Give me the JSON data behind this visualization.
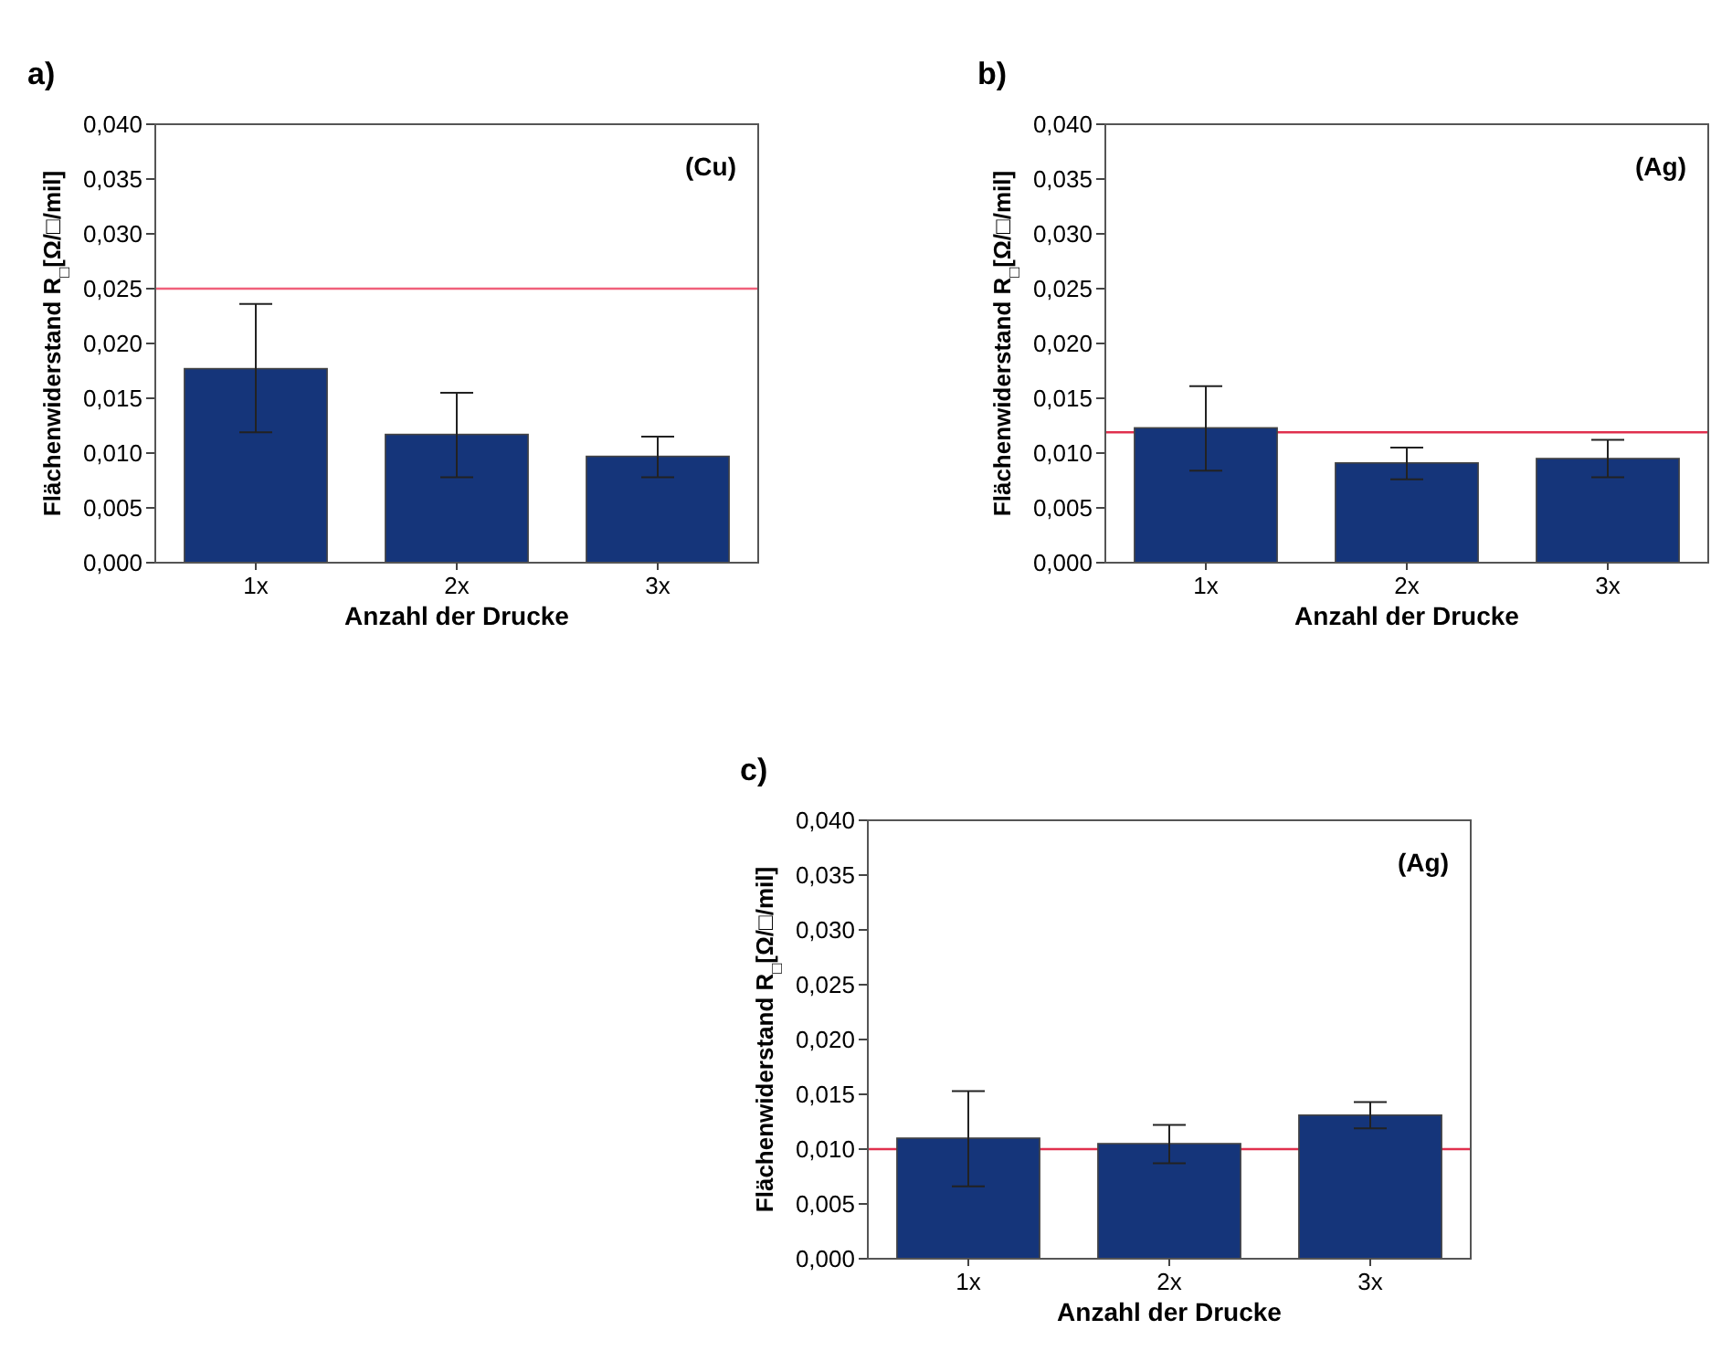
{
  "chart_data": [
    {
      "type": "bar",
      "title": "a)",
      "xlabel": "Anzahl der Drucke",
      "ylabel": "Flächenwiderstand R$_{□}$[Ω/□/mil]",
      "annotations": [
        "(Cu)"
      ],
      "categories": [
        "1x",
        "2x",
        "3x"
      ],
      "values": [
        0.0177,
        0.0117,
        0.0097
      ],
      "errors": [
        [
          0.0119,
          0.0236
        ],
        [
          0.0078,
          0.0155
        ],
        [
          0.0078,
          0.0115
        ]
      ],
      "color": "#15357a",
      "ylim": [
        0,
        0.04
      ],
      "yticks": [
        {
          "value": 0,
          "label": "0,000"
        },
        {
          "value": 0.005,
          "label": "0,005"
        },
        {
          "value": 0.01,
          "label": "0,010"
        },
        {
          "value": 0.015,
          "label": "0,015"
        },
        {
          "value": 0.02,
          "label": "0,020"
        },
        {
          "value": 0.025,
          "label": "0,025"
        },
        {
          "value": 0.03,
          "label": "0,030"
        },
        {
          "value": 0.035,
          "label": "0,035"
        },
        {
          "value": 0.04,
          "label": "0,040"
        }
      ],
      "ref_lines": [
        {
          "axis": "y",
          "value": 0.025,
          "color": "#f0607a"
        }
      ]
    },
    {
      "type": "bar",
      "title": "b)",
      "xlabel": "Anzahl der Drucke",
      "ylabel": "Flächenwiderstand R$_{□}$[Ω/□/mil]",
      "annotations": [
        "(Ag)"
      ],
      "categories": [
        "1x",
        "2x",
        "3x"
      ],
      "values": [
        0.0123,
        0.0091,
        0.0095
      ],
      "errors": [
        [
          0.0084,
          0.0161
        ],
        [
          0.0076,
          0.0105
        ],
        [
          0.0078,
          0.0112
        ]
      ],
      "color": "#15357a",
      "ylim": [
        0,
        0.04
      ],
      "yticks": [
        {
          "value": 0,
          "label": "0,000"
        },
        {
          "value": 0.005,
          "label": "0,005"
        },
        {
          "value": 0.01,
          "label": "0,010"
        },
        {
          "value": 0.015,
          "label": "0,015"
        },
        {
          "value": 0.02,
          "label": "0,020"
        },
        {
          "value": 0.025,
          "label": "0,025"
        },
        {
          "value": 0.03,
          "label": "0,030"
        },
        {
          "value": 0.035,
          "label": "0,035"
        },
        {
          "value": 0.04,
          "label": "0,040"
        }
      ],
      "ref_lines": [
        {
          "axis": "y",
          "value": 0.0119,
          "color": "#e0304e"
        }
      ]
    },
    {
      "type": "bar",
      "title": "c)",
      "xlabel": "Anzahl der Drucke",
      "ylabel": "Flächenwiderstand R$_{□}$[Ω/□/mil]",
      "annotations": [
        "(Ag)"
      ],
      "categories": [
        "1x",
        "2x",
        "3x"
      ],
      "values": [
        0.011,
        0.0105,
        0.0131
      ],
      "errors": [
        [
          0.0066,
          0.0153
        ],
        [
          0.0087,
          0.0122
        ],
        [
          0.0119,
          0.0143
        ]
      ],
      "color": "#15357a",
      "ylim": [
        0,
        0.04
      ],
      "yticks": [
        {
          "value": 0,
          "label": "0,000"
        },
        {
          "value": 0.005,
          "label": "0,005"
        },
        {
          "value": 0.01,
          "label": "0,010"
        },
        {
          "value": 0.015,
          "label": "0,015"
        },
        {
          "value": 0.02,
          "label": "0,020"
        },
        {
          "value": 0.025,
          "label": "0,025"
        },
        {
          "value": 0.03,
          "label": "0,030"
        },
        {
          "value": 0.035,
          "label": "0,035"
        },
        {
          "value": 0.04,
          "label": "0,040"
        }
      ],
      "ref_lines": [
        {
          "axis": "y",
          "value": 0.01,
          "color": "#e0304e"
        }
      ]
    }
  ]
}
